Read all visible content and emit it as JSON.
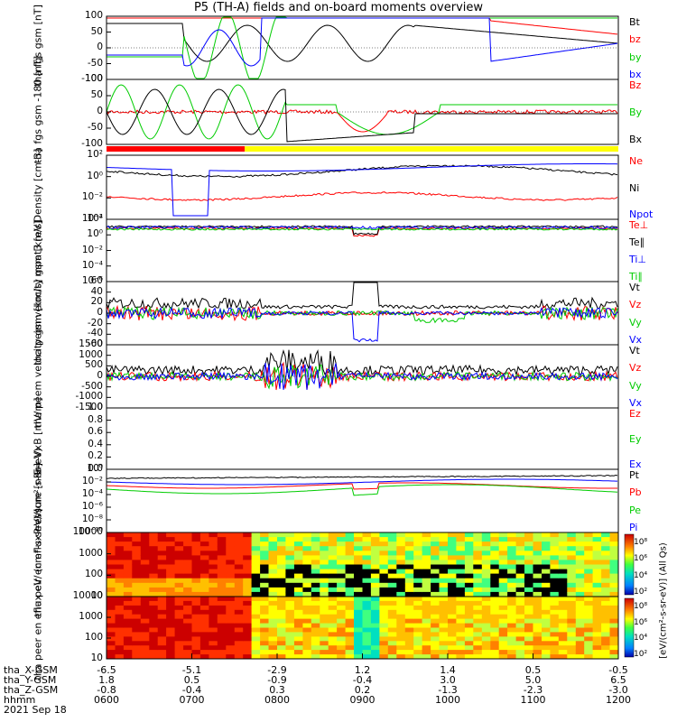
{
  "title": "P5 (TH-A) fields and on-board moments overview",
  "chart_data": [
    {
      "type": "line",
      "panel": "fgs",
      "ylabel": "tha fgs gsm [nT]",
      "ylim": [
        -100,
        100
      ],
      "yticks": [
        "100",
        "50",
        "0",
        "-50",
        "-100"
      ],
      "series": [
        {
          "name": "Bt",
          "color": "#000000"
        },
        {
          "name": "bz",
          "color": "#ff0000"
        },
        {
          "name": "by",
          "color": "#00cc00"
        },
        {
          "name": "bx",
          "color": "#0000ff"
        }
      ]
    },
    {
      "type": "line",
      "panel": "fgs-lowres",
      "ylabel": "tha fgs gsm -180 [nT]",
      "ylim": [
        -100,
        100
      ],
      "yticks": [
        "100",
        "50",
        "0",
        "-50",
        "-100"
      ],
      "series": [
        {
          "name": "Bz",
          "color": "#ff0000"
        },
        {
          "name": "By",
          "color": "#00cc00"
        },
        {
          "name": "Bx",
          "color": "#000000"
        }
      ]
    },
    {
      "type": "line",
      "panel": "density",
      "ylabel": "Density [cm-3]",
      "scale": "log",
      "yticks": [
        "10²",
        "10⁰",
        "10⁻²",
        "10⁻⁴"
      ],
      "series": [
        {
          "name": "Ne",
          "color": "#ff0000"
        },
        {
          "name": "Ni",
          "color": "#000000"
        },
        {
          "name": "Npot",
          "color": "#0000ff"
        }
      ]
    },
    {
      "type": "line",
      "panel": "temperature",
      "ylabel": "mpat3 [eV]",
      "scale": "log",
      "yticks": [
        "10²",
        "10⁰",
        "10⁻²",
        "10⁻⁴",
        "10⁻⁶"
      ],
      "series": [
        {
          "name": "Te⊥",
          "color": "#ff0000"
        },
        {
          "name": "Te∥",
          "color": "#000000"
        },
        {
          "name": "Ti⊥",
          "color": "#0000ff"
        },
        {
          "name": "Ti∥",
          "color": "#00cc00"
        }
      ]
    },
    {
      "type": "line",
      "panel": "peim-velocity",
      "ylabel": "tha peim velocity gsm [km/s]",
      "ylim": [
        -60,
        60
      ],
      "yticks": [
        "60",
        "40",
        "20",
        "0",
        "-20",
        "-40",
        "-60"
      ],
      "series": [
        {
          "name": "Vt",
          "color": "#000000"
        },
        {
          "name": "Vz",
          "color": "#ff0000"
        },
        {
          "name": "Vy",
          "color": "#00cc00"
        },
        {
          "name": "Vx",
          "color": "#0000ff"
        }
      ]
    },
    {
      "type": "line",
      "panel": "peem-velocity",
      "ylabel": "tha peem velocity gsm [km/s]",
      "ylim": [
        -1500,
        1500
      ],
      "yticks": [
        "1500",
        "1000",
        "500",
        "0",
        "-500",
        "-1000",
        "-1500"
      ],
      "series": [
        {
          "name": "Vt",
          "color": "#000000"
        },
        {
          "name": "Vz",
          "color": "#ff0000"
        },
        {
          "name": "Vy",
          "color": "#00cc00"
        },
        {
          "name": "Vx",
          "color": "#0000ff"
        }
      ]
    },
    {
      "type": "line",
      "panel": "efield",
      "ylabel": "E=-VxB [mV/m]",
      "ylim": [
        0,
        1.0
      ],
      "yticks": [
        "1.0",
        "0.8",
        "0.6",
        "0.4",
        "0.2",
        "0.0"
      ],
      "series": [
        {
          "name": "Ez",
          "color": "#ff0000"
        },
        {
          "name": "Ey",
          "color": "#00cc00"
        },
        {
          "name": "Ex",
          "color": "#0000ff"
        }
      ]
    },
    {
      "type": "line",
      "panel": "pressure",
      "ylabel": "Pressure [nPa]",
      "scale": "log",
      "yticks": [
        "10⁰",
        "10⁻²",
        "10⁻⁴",
        "10⁻⁶",
        "10⁻⁸",
        "10⁻¹⁰"
      ],
      "series": [
        {
          "name": "Pt",
          "color": "#000000"
        },
        {
          "name": "Pb",
          "color": "#ff0000"
        },
        {
          "name": "Pe",
          "color": "#00cc00"
        },
        {
          "name": "Pi",
          "color": "#0000ff"
        }
      ]
    },
    {
      "type": "heatmap",
      "panel": "peir-eflux",
      "ylabel": "tha peir en eflux eV/ (cm²-s-sr-eV)",
      "yticks": [
        "10000",
        "1000",
        "100",
        "10"
      ],
      "colorbar_ticks": [
        "10⁸",
        "10⁶",
        "10⁴",
        "10²"
      ],
      "colorbar_label": "[eV/(cm²-s-sr-eV)] (All Qs)"
    },
    {
      "type": "heatmap",
      "panel": "peer-eflux",
      "ylabel": "tha peer en eflux eV/ (cm²-s-sr-eV)",
      "yticks": [
        "10000",
        "1000",
        "100",
        "10"
      ],
      "colorbar_ticks": [
        "10⁸",
        "10⁶",
        "10⁴",
        "10²"
      ]
    }
  ],
  "footer": {
    "rows": [
      {
        "label": "tha_X-GSM",
        "values": [
          "-6.5",
          "-5.1",
          "-2.9",
          "1.2",
          "1.4",
          "0.5",
          "-0.5"
        ]
      },
      {
        "label": "tha_Y-GSM",
        "values": [
          "1.8",
          "0.5",
          "-0.9",
          "-0.4",
          "3.0",
          "5.0",
          "6.5"
        ]
      },
      {
        "label": "tha_Z-GSM",
        "values": [
          "-0.8",
          "-0.4",
          "0.3",
          "0.2",
          "-1.3",
          "-2.3",
          "-3.0"
        ]
      },
      {
        "label": "hhmm",
        "values": [
          "0600",
          "0700",
          "0800",
          "0900",
          "1000",
          "1100",
          "1200"
        ]
      }
    ],
    "date": "2021 Sep 18"
  },
  "mode_bar": {
    "colors": [
      "#ff0000",
      "#ffff00"
    ]
  }
}
